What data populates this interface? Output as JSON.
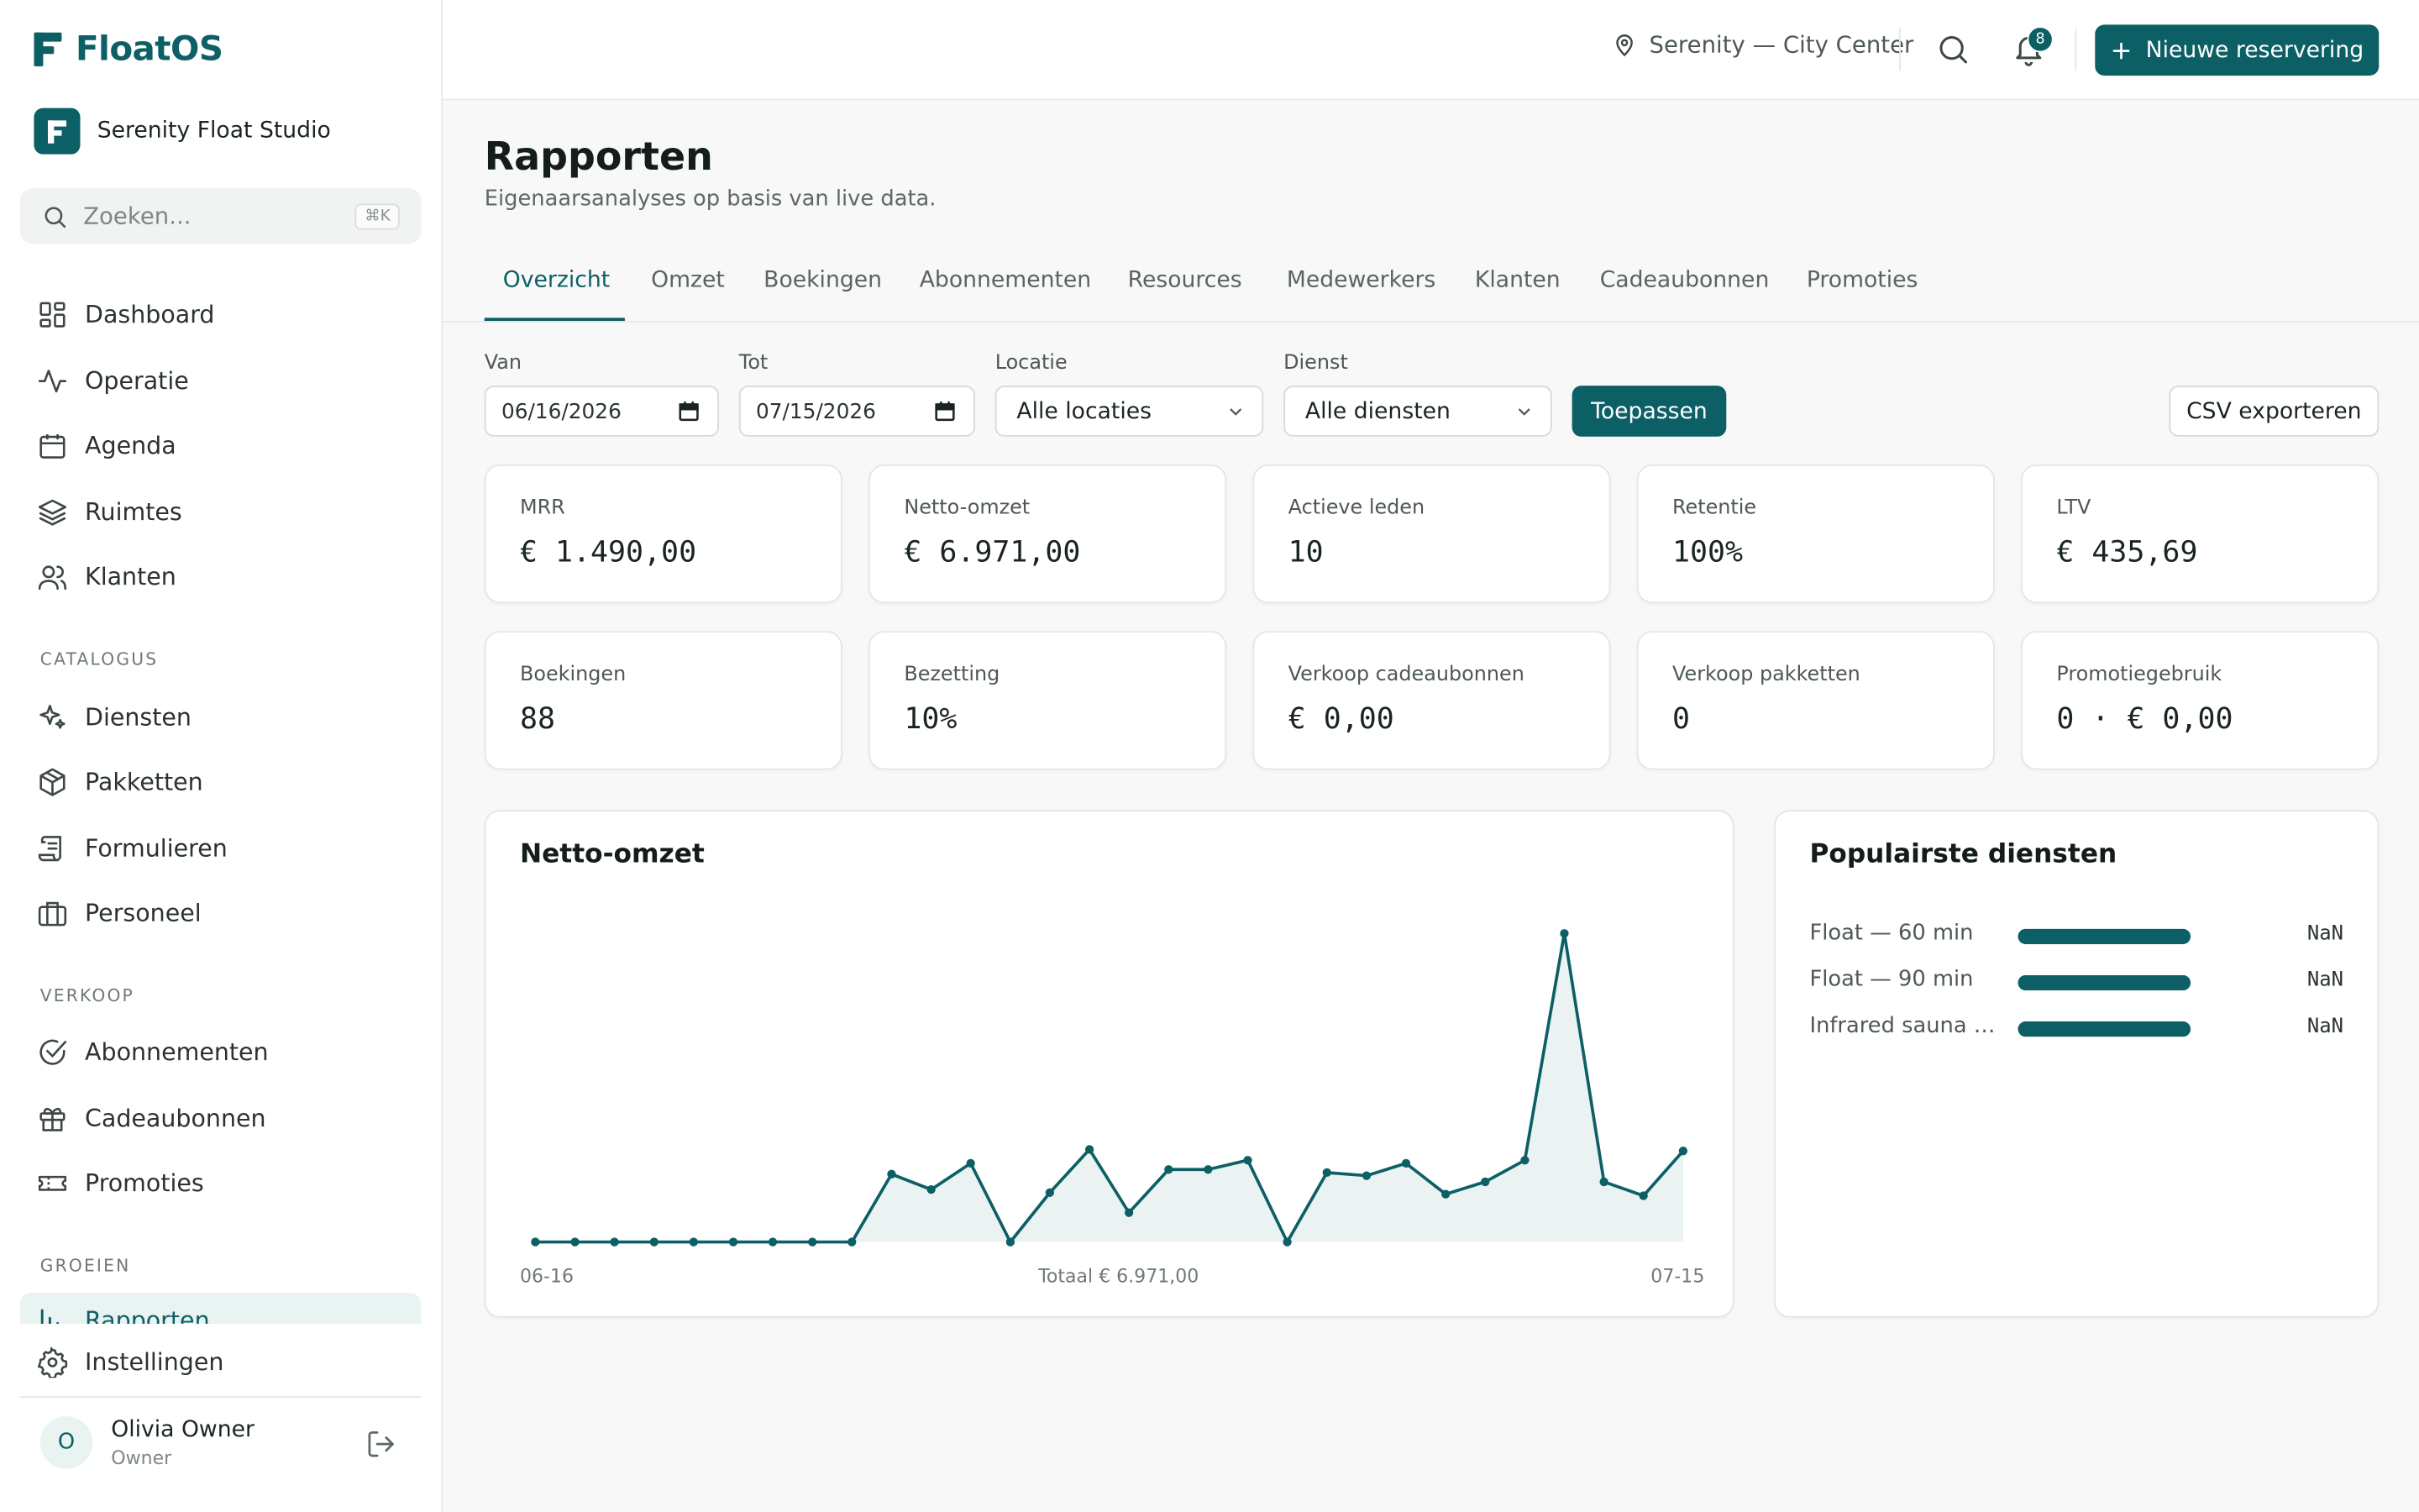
{
  "app": {
    "name": "FloatOS",
    "studio": "Serenity Float Studio"
  },
  "sidebar": {
    "search_placeholder": "Zoeken...",
    "search_shortcut": "⌘K",
    "items": [
      {
        "label": "Dashboard",
        "icon": "dashboard-icon"
      },
      {
        "label": "Operatie",
        "icon": "activity-icon"
      },
      {
        "label": "Agenda",
        "icon": "calendar-icon"
      },
      {
        "label": "Ruimtes",
        "icon": "layers-icon"
      },
      {
        "label": "Klanten",
        "icon": "users-icon"
      }
    ],
    "sections": [
      {
        "label": "CATALOGUS",
        "items": [
          {
            "label": "Diensten",
            "icon": "sparkles-icon"
          },
          {
            "label": "Pakketten",
            "icon": "package-icon"
          },
          {
            "label": "Formulieren",
            "icon": "scroll-icon"
          },
          {
            "label": "Personeel",
            "icon": "briefcase-icon"
          }
        ]
      },
      {
        "label": "VERKOOP",
        "items": [
          {
            "label": "Abonnementen",
            "icon": "check-circle-icon"
          },
          {
            "label": "Cadeaubonnen",
            "icon": "gift-icon"
          },
          {
            "label": "Promoties",
            "icon": "ticket-icon"
          }
        ]
      },
      {
        "label": "GROEIEN",
        "items": [
          {
            "label": "Rapporten",
            "icon": "bar-chart-icon",
            "active": true
          }
        ]
      }
    ],
    "settings_label": "Instellingen",
    "user": {
      "initial": "O",
      "name": "Olivia Owner",
      "role": "Owner"
    }
  },
  "topbar": {
    "location": "Serenity — City Center",
    "notifications": "8",
    "new_button": "Nieuwe reservering"
  },
  "page": {
    "title": "Rapporten",
    "subtitle": "Eigenaarsanalyses op basis van live data."
  },
  "tabs": [
    "Overzicht",
    "Omzet",
    "Boekingen",
    "Abonnementen",
    "Resources",
    "Medewerkers",
    "Klanten",
    "Cadeaubonnen",
    "Promoties"
  ],
  "active_tab": "Overzicht",
  "filters": {
    "from_label": "Van",
    "from_value": "06/16/2026",
    "to_label": "Tot",
    "to_value": "07/15/2026",
    "location_label": "Locatie",
    "location_value": "Alle locaties",
    "service_label": "Dienst",
    "service_value": "Alle diensten",
    "apply": "Toepassen",
    "export": "CSV exporteren"
  },
  "kpis": [
    {
      "label": "MRR",
      "value": "€ 1.490,00"
    },
    {
      "label": "Netto-omzet",
      "value": "€ 6.971,00"
    },
    {
      "label": "Actieve leden",
      "value": "10"
    },
    {
      "label": "Retentie",
      "value": "100%"
    },
    {
      "label": "LTV",
      "value": "€ 435,69"
    },
    {
      "label": "Boekingen",
      "value": "88"
    },
    {
      "label": "Bezetting",
      "value": "10%"
    },
    {
      "label": "Verkoop cadeaubonnen",
      "value": "€ 0,00"
    },
    {
      "label": "Verkoop pakketten",
      "value": "0"
    },
    {
      "label": "Promotiegebruik",
      "value": "0 · € 0,00"
    }
  ],
  "revenue_card": {
    "title": "Netto-omzet",
    "start_label": "06-16",
    "total_label": "Totaal € 6.971,00",
    "end_label": "07-15"
  },
  "chart_data": {
    "type": "area",
    "x": [
      "06-16",
      "06-17",
      "06-18",
      "06-19",
      "06-20",
      "06-21",
      "06-22",
      "06-23",
      "06-24",
      "06-25",
      "06-26",
      "06-27",
      "06-28",
      "06-29",
      "06-30",
      "07-01",
      "07-02",
      "07-03",
      "07-04",
      "07-05",
      "07-06",
      "07-07",
      "07-08",
      "07-09",
      "07-10",
      "07-11",
      "07-12",
      "07-13",
      "07-14",
      "07-15"
    ],
    "values": [
      0,
      0,
      0,
      0,
      0,
      0,
      0,
      0,
      0,
      220,
      170,
      255,
      0,
      160,
      300,
      95,
      235,
      235,
      265,
      0,
      225,
      215,
      255,
      155,
      195,
      265,
      1000,
      195,
      150,
      295
    ],
    "color": "#0d5f66",
    "fill": "#eaf3f2",
    "note_units": "relative"
  },
  "popular_card": {
    "title": "Populairste diensten",
    "items": [
      {
        "name": "Float — 60 min",
        "value": "NaN",
        "fill": 1.0
      },
      {
        "name": "Float — 90 min",
        "value": "NaN",
        "fill": 1.0
      },
      {
        "name": "Infrared sauna —…",
        "value": "NaN",
        "fill": 1.0
      }
    ]
  },
  "colors": {
    "accent": "#0d5f66",
    "accent_light": "#e9f3f2"
  }
}
